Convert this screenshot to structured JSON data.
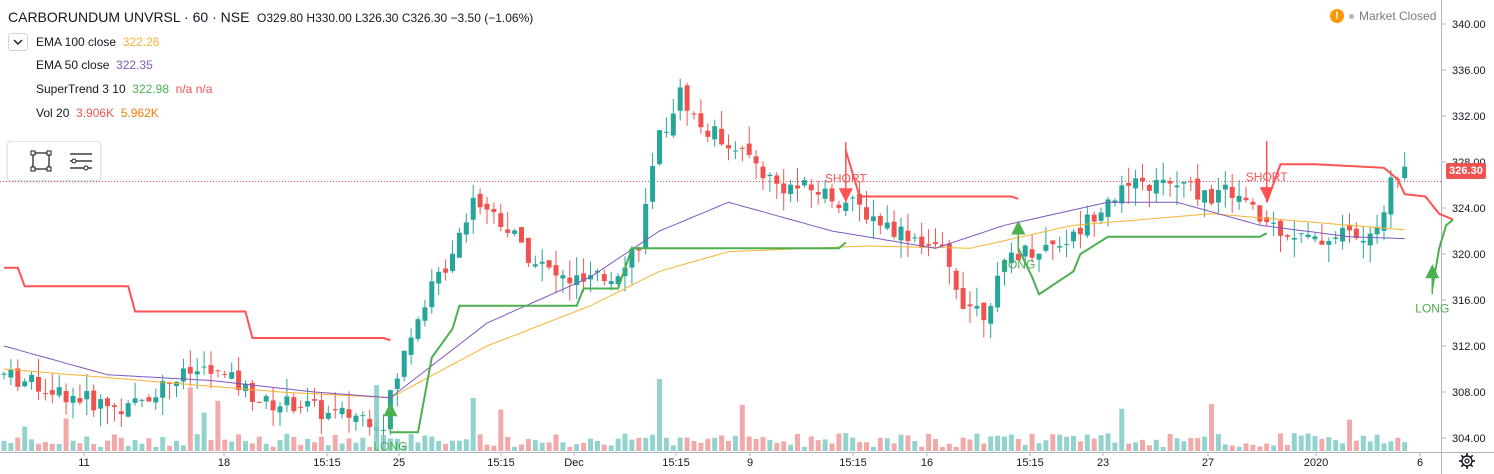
{
  "header": {
    "symbol": "CARBORUNDUM UNVRSL · 60 · NSE",
    "ohlc": "O329.80  H330.00  L326.30  C326.30  −3.50 (−1.06%)"
  },
  "legend": [
    {
      "label": "EMA 100 close",
      "value": "322.26",
      "color": "#f9b233"
    },
    {
      "label": "EMA 50 close",
      "value": "322.35",
      "color": "#7e57c2"
    },
    {
      "label": "SuperTrend 3 10",
      "value": "322.98",
      "extra": "n/a n/a",
      "color": "#4caf50",
      "extra_color": "#ef5350"
    },
    {
      "label": "Vol 20",
      "value": "3.906K",
      "value2": "5.962K",
      "color": "#ef5350",
      "color2": "#f57c00"
    }
  ],
  "market_status": "Market Closed",
  "last_price_label": "326.30",
  "colors": {
    "up": "#26a69a",
    "down": "#ef5350",
    "ema100": "#f9b233",
    "ema50": "#7e57c2",
    "st_up": "#4caf50",
    "st_down": "#ff5252",
    "vol_up": "#80cbc4",
    "vol_down": "#ef9a9a"
  },
  "icons": {
    "collapse": "chevron-down-icon",
    "rect_tool": "rectangle-tool-icon",
    "list_tool": "list-icon",
    "settings": "gear-icon"
  },
  "chart_data": {
    "type": "candlestick",
    "title": "CARBORUNDUM UNVRSL · 60 · NSE",
    "ylim": [
      301,
      342
    ],
    "y_ticks": [
      "340.00",
      "336.00",
      "332.00",
      "328.00",
      "324.00",
      "320.00",
      "316.00",
      "312.00",
      "308.00",
      "304.00"
    ],
    "x_ticks": [
      "11",
      "18",
      "15:15",
      "25",
      "15:15",
      "Dec",
      "15:15",
      "9",
      "15:15",
      "16",
      "15:15",
      "23",
      "27",
      "2020",
      "6"
    ],
    "n_bars": 203,
    "price_anchors": [
      [
        0,
        309.5
      ],
      [
        8,
        308
      ],
      [
        14,
        307
      ],
      [
        18,
        306.5
      ],
      [
        24,
        309
      ],
      [
        29,
        310
      ],
      [
        33,
        309
      ],
      [
        38,
        307
      ],
      [
        43,
        307
      ],
      [
        47,
        306
      ],
      [
        51,
        306
      ],
      [
        55,
        305.5
      ],
      [
        56,
        307.5
      ],
      [
        60,
        315
      ],
      [
        64,
        319
      ],
      [
        68,
        325
      ],
      [
        72,
        323
      ],
      [
        76,
        320
      ],
      [
        80,
        318
      ],
      [
        84,
        317.5
      ],
      [
        88,
        318
      ],
      [
        92,
        321
      ],
      [
        95,
        330
      ],
      [
        98,
        334
      ],
      [
        101,
        331
      ],
      [
        106,
        329.5
      ],
      [
        112,
        326
      ],
      [
        118,
        325.5
      ],
      [
        124,
        324
      ],
      [
        128,
        322.5
      ],
      [
        132,
        321.5
      ],
      [
        136,
        320
      ],
      [
        139,
        316
      ],
      [
        142,
        315
      ],
      [
        146,
        320
      ],
      [
        150,
        320.5
      ],
      [
        155,
        321.5
      ],
      [
        160,
        325
      ],
      [
        165,
        326
      ],
      [
        170,
        326
      ],
      [
        175,
        325
      ],
      [
        178,
        325.5
      ],
      [
        182,
        323
      ],
      [
        186,
        322
      ],
      [
        190,
        321
      ],
      [
        194,
        322
      ],
      [
        198,
        321
      ],
      [
        201,
        326
      ],
      [
        203,
        328
      ],
      [
        205,
        334
      ],
      [
        208,
        332
      ],
      [
        210,
        326.3
      ]
    ],
    "ema100_anchors": [
      [
        0,
        310
      ],
      [
        20,
        309
      ],
      [
        40,
        308
      ],
      [
        56,
        307.5
      ],
      [
        70,
        312
      ],
      [
        85,
        315.5
      ],
      [
        95,
        318.5
      ],
      [
        105,
        320.2
      ],
      [
        125,
        320.7
      ],
      [
        140,
        320.5
      ],
      [
        155,
        322.5
      ],
      [
        175,
        323.5
      ],
      [
        195,
        322.5
      ],
      [
        205,
        322
      ],
      [
        210,
        322.26
      ]
    ],
    "ema50_anchors": [
      [
        0,
        312
      ],
      [
        15,
        309.5
      ],
      [
        30,
        309
      ],
      [
        45,
        308
      ],
      [
        56,
        307.5
      ],
      [
        70,
        314
      ],
      [
        85,
        318
      ],
      [
        95,
        322
      ],
      [
        105,
        324.5
      ],
      [
        120,
        322
      ],
      [
        135,
        320.5
      ],
      [
        145,
        322.5
      ],
      [
        160,
        324.5
      ],
      [
        170,
        324.5
      ],
      [
        182,
        322.5
      ],
      [
        195,
        321.5
      ],
      [
        205,
        321.3
      ],
      [
        210,
        322.35
      ]
    ],
    "supertrend": {
      "value": 322.98,
      "segments": [
        {
          "trend": "down",
          "points": [
            [
              0,
              318.8
            ],
            [
              2,
              318.8
            ],
            [
              3,
              317.2
            ],
            [
              18,
              317.2
            ],
            [
              19,
              315
            ],
            [
              35,
              315
            ],
            [
              36,
              312.7
            ],
            [
              55,
              312.7
            ],
            [
              56,
              312.5
            ]
          ]
        },
        {
          "trend": "up",
          "points": [
            [
              56,
              304.5
            ],
            [
              60,
              304.5
            ],
            [
              62,
              311
            ],
            [
              65,
              313.5
            ],
            [
              66,
              315.5
            ],
            [
              83,
              315.5
            ],
            [
              84,
              317
            ],
            [
              89,
              317
            ],
            [
              91,
              320.5
            ],
            [
              121,
              320.5
            ],
            [
              122,
              321
            ]
          ]
        },
        {
          "trend": "down",
          "points": [
            [
              122,
              329
            ],
            [
              124,
              325
            ],
            [
              146,
              325
            ],
            [
              147,
              324.8
            ]
          ]
        },
        {
          "trend": "up",
          "points": [
            [
              147,
              320.5
            ],
            [
              149,
              318
            ],
            [
              150,
              316.5
            ],
            [
              155,
              318.5
            ],
            [
              156,
              320
            ],
            [
              160,
              321.5
            ],
            [
              182,
              321.5
            ],
            [
              183,
              321.8
            ]
          ]
        },
        {
          "trend": "down",
          "points": [
            [
              183,
              324.5
            ],
            [
              185,
              327.8
            ],
            [
              190,
              327.8
            ],
            [
              200,
              327.5
            ],
            [
              202,
              326.5
            ],
            [
              203,
              325.2
            ],
            [
              206,
              325
            ],
            [
              208,
              323.5
            ],
            [
              210,
              323
            ]
          ]
        },
        {
          "trend": "up",
          "points": [
            [
              207,
              317
            ],
            [
              208,
              320.5
            ],
            [
              209,
              322.5
            ],
            [
              210,
              322.98
            ]
          ]
        }
      ]
    },
    "signals": [
      {
        "type": "LONG",
        "bar": 56,
        "price": 304.5
      },
      {
        "type": "SHORT",
        "bar": 122,
        "price": 324.5
      },
      {
        "type": "LONG",
        "bar": 147,
        "price": 320.3
      },
      {
        "type": "SHORT",
        "bar": 183,
        "price": 324.6
      },
      {
        "type": "LONG",
        "bar": 207,
        "price": 316.5
      }
    ],
    "volume": {
      "current": "3.906K",
      "ma20": "5.962K"
    }
  }
}
